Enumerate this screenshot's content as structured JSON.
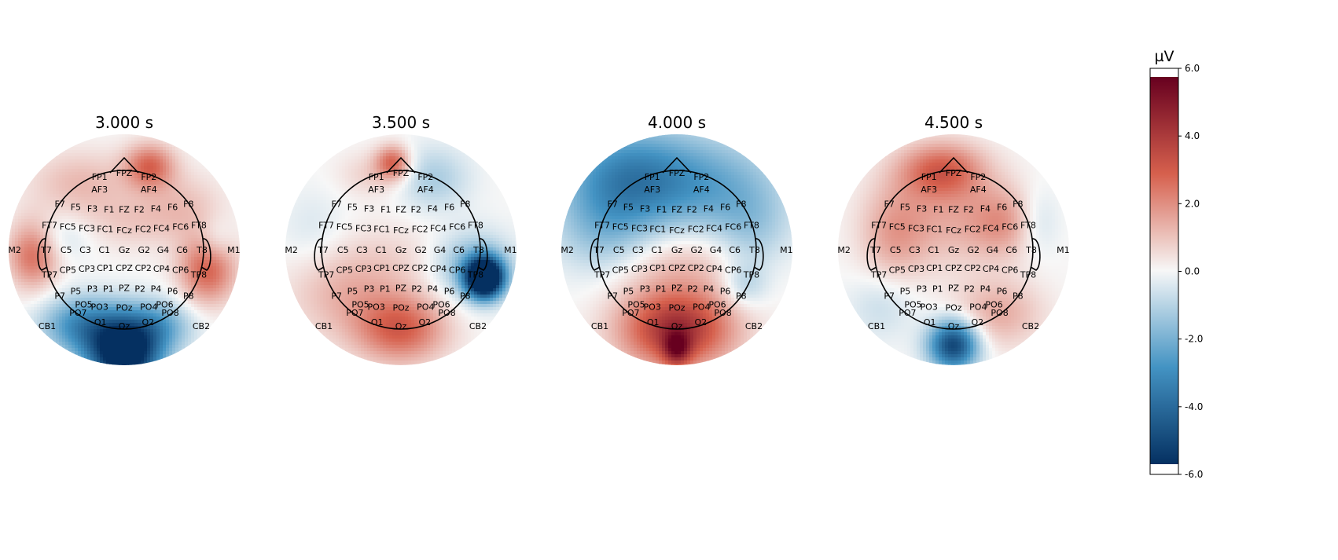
{
  "chart_data": {
    "type": "heatmap",
    "subtype": "eeg-topomap",
    "colormap": "RdBu_r",
    "colors": {
      "max": "#67001f",
      "positive": "#d6604d",
      "zero": "#f7f7f7",
      "negative": "#4393c3",
      "min": "#053061",
      "head_outline": "#000000",
      "contour": "#444444"
    },
    "colorbar": {
      "unit": "µV",
      "vmin": -6.0,
      "vmax": 6.0,
      "ticks": [
        "6.0",
        "4.0",
        "2.0",
        "0.0",
        "-2.0",
        "-4.0",
        "-6.0"
      ]
    },
    "electrodes": [
      {
        "name": "FP1",
        "x": -0.31,
        "y": 0.92
      },
      {
        "name": "FPZ",
        "x": 0.0,
        "y": 0.97
      },
      {
        "name": "FP2",
        "x": 0.31,
        "y": 0.92
      },
      {
        "name": "AF3",
        "x": -0.31,
        "y": 0.76
      },
      {
        "name": "AF4",
        "x": 0.31,
        "y": 0.76
      },
      {
        "name": "F7",
        "x": -0.81,
        "y": 0.58
      },
      {
        "name": "F5",
        "x": -0.61,
        "y": 0.54
      },
      {
        "name": "F3",
        "x": -0.4,
        "y": 0.52
      },
      {
        "name": "F1",
        "x": -0.19,
        "y": 0.51
      },
      {
        "name": "FZ",
        "x": 0.0,
        "y": 0.51
      },
      {
        "name": "F2",
        "x": 0.19,
        "y": 0.51
      },
      {
        "name": "F4",
        "x": 0.4,
        "y": 0.52
      },
      {
        "name": "F6",
        "x": 0.61,
        "y": 0.54
      },
      {
        "name": "F8",
        "x": 0.81,
        "y": 0.58
      },
      {
        "name": "FT7",
        "x": -0.94,
        "y": 0.31
      },
      {
        "name": "FC5",
        "x": -0.71,
        "y": 0.29
      },
      {
        "name": "FC3",
        "x": -0.47,
        "y": 0.27
      },
      {
        "name": "FC1",
        "x": -0.24,
        "y": 0.26
      },
      {
        "name": "FCz",
        "x": 0.0,
        "y": 0.25
      },
      {
        "name": "FC2",
        "x": 0.24,
        "y": 0.26
      },
      {
        "name": "FC4",
        "x": 0.47,
        "y": 0.27
      },
      {
        "name": "FC6",
        "x": 0.71,
        "y": 0.29
      },
      {
        "name": "FT8",
        "x": 0.94,
        "y": 0.31
      },
      {
        "name": "M2",
        "x": -1.38,
        "y": 0.0
      },
      {
        "name": "T7",
        "x": -0.98,
        "y": 0.0
      },
      {
        "name": "C5",
        "x": -0.73,
        "y": 0.0
      },
      {
        "name": "C3",
        "x": -0.49,
        "y": 0.0
      },
      {
        "name": "C1",
        "x": -0.25,
        "y": 0.0
      },
      {
        "name": "Gz",
        "x": 0.0,
        "y": 0.0
      },
      {
        "name": "G2",
        "x": 0.25,
        "y": 0.0
      },
      {
        "name": "G4",
        "x": 0.49,
        "y": 0.0
      },
      {
        "name": "C6",
        "x": 0.73,
        "y": 0.0
      },
      {
        "name": "T8",
        "x": 0.98,
        "y": 0.0
      },
      {
        "name": "M1",
        "x": 1.38,
        "y": 0.0
      },
      {
        "name": "TP7",
        "x": -0.94,
        "y": -0.31
      },
      {
        "name": "CP5",
        "x": -0.71,
        "y": -0.25
      },
      {
        "name": "CP3",
        "x": -0.47,
        "y": -0.24
      },
      {
        "name": "CP1",
        "x": -0.24,
        "y": -0.23
      },
      {
        "name": "CPZ",
        "x": 0.0,
        "y": -0.23
      },
      {
        "name": "CP2",
        "x": 0.24,
        "y": -0.23
      },
      {
        "name": "CP4",
        "x": 0.47,
        "y": -0.24
      },
      {
        "name": "CP6",
        "x": 0.71,
        "y": -0.25
      },
      {
        "name": "TP8",
        "x": 0.94,
        "y": -0.31
      },
      {
        "name": "P7",
        "x": -0.81,
        "y": -0.58
      },
      {
        "name": "P5",
        "x": -0.61,
        "y": -0.52
      },
      {
        "name": "P3",
        "x": -0.4,
        "y": -0.49
      },
      {
        "name": "P1",
        "x": -0.2,
        "y": -0.49
      },
      {
        "name": "PZ",
        "x": 0.0,
        "y": -0.48
      },
      {
        "name": "P2",
        "x": 0.2,
        "y": -0.49
      },
      {
        "name": "P4",
        "x": 0.4,
        "y": -0.49
      },
      {
        "name": "P6",
        "x": 0.61,
        "y": -0.52
      },
      {
        "name": "P8",
        "x": 0.81,
        "y": -0.58
      },
      {
        "name": "PO5",
        "x": -0.51,
        "y": -0.69
      },
      {
        "name": "PO3",
        "x": -0.31,
        "y": -0.72
      },
      {
        "name": "POz",
        "x": 0.0,
        "y": -0.73
      },
      {
        "name": "PO4",
        "x": 0.31,
        "y": -0.72
      },
      {
        "name": "PO6",
        "x": 0.51,
        "y": -0.69
      },
      {
        "name": "PO7",
        "x": -0.58,
        "y": -0.79
      },
      {
        "name": "PO8",
        "x": 0.58,
        "y": -0.79
      },
      {
        "name": "CB1",
        "x": -0.97,
        "y": -0.96
      },
      {
        "name": "O1",
        "x": -0.3,
        "y": -0.91
      },
      {
        "name": "Oz",
        "x": 0.0,
        "y": -0.96
      },
      {
        "name": "O2",
        "x": 0.3,
        "y": -0.91
      },
      {
        "name": "CB2",
        "x": 0.97,
        "y": -0.96
      }
    ],
    "panels": [
      {
        "title": "3.000 s",
        "time_s": 3.0,
        "blobs": [
          {
            "x": 0.0,
            "y": -1.3,
            "sx": 0.32,
            "sy": 0.32,
            "v": -7.5
          },
          {
            "x": -0.55,
            "y": -0.95,
            "sx": 0.35,
            "sy": 0.25,
            "v": -3.0
          },
          {
            "x": 0.45,
            "y": -0.95,
            "sx": 0.3,
            "sy": 0.22,
            "v": -2.0
          },
          {
            "x": 1.05,
            "y": -0.25,
            "sx": 0.25,
            "sy": 0.3,
            "v": 3.0
          },
          {
            "x": 0.32,
            "y": 1.05,
            "sx": 0.22,
            "sy": 0.2,
            "v": 2.8
          },
          {
            "x": -1.15,
            "y": -0.05,
            "sx": 0.22,
            "sy": 0.3,
            "v": 2.8
          },
          {
            "x": -0.55,
            "y": 0.85,
            "sx": 0.45,
            "sy": 0.28,
            "v": 1.2
          },
          {
            "x": 0.75,
            "y": 0.55,
            "sx": 0.35,
            "sy": 0.3,
            "v": 1.0
          },
          {
            "x": 0.05,
            "y": 0.35,
            "sx": 0.45,
            "sy": 0.25,
            "v": 0.8
          },
          {
            "x": -0.85,
            "y": 0.15,
            "sx": 0.3,
            "sy": 0.2,
            "v": -0.8
          },
          {
            "x": 1.15,
            "y": 0.1,
            "sx": 0.15,
            "sy": 0.2,
            "v": -0.8
          }
        ]
      },
      {
        "title": "3.500 s",
        "time_s": 3.5,
        "blobs": [
          {
            "x": 1.05,
            "y": -0.35,
            "sx": 0.16,
            "sy": 0.17,
            "v": -9.5
          },
          {
            "x": 0.9,
            "y": -0.2,
            "sx": 0.35,
            "sy": 0.3,
            "v": -2.0
          },
          {
            "x": 0.4,
            "y": 0.9,
            "sx": 0.32,
            "sy": 0.28,
            "v": -1.3
          },
          {
            "x": 0.0,
            "y": -1.0,
            "sx": 0.4,
            "sy": 0.3,
            "v": 3.0
          },
          {
            "x": -0.1,
            "y": 1.1,
            "sx": 0.15,
            "sy": 0.15,
            "v": 2.8
          },
          {
            "x": -0.35,
            "y": 0.95,
            "sx": 0.3,
            "sy": 0.2,
            "v": 0.8
          },
          {
            "x": -0.7,
            "y": -0.55,
            "sx": 0.5,
            "sy": 0.4,
            "v": 1.3
          },
          {
            "x": 0.0,
            "y": -0.1,
            "sx": 0.55,
            "sy": 0.35,
            "v": 0.5
          },
          {
            "x": -1.1,
            "y": 0.25,
            "sx": 0.3,
            "sy": 0.35,
            "v": -0.5
          }
        ]
      },
      {
        "title": "4.000 s",
        "time_s": 4.0,
        "blobs": [
          {
            "x": 0.0,
            "y": -1.0,
            "sx": 0.5,
            "sy": 0.35,
            "v": 4.5
          },
          {
            "x": 0.0,
            "y": -1.25,
            "sx": 0.12,
            "sy": 0.15,
            "v": 3.0
          },
          {
            "x": 0.0,
            "y": -0.15,
            "sx": 0.7,
            "sy": 0.35,
            "v": 1.2
          },
          {
            "x": -0.6,
            "y": 0.9,
            "sx": 0.6,
            "sy": 0.45,
            "v": -3.5
          },
          {
            "x": 0.5,
            "y": 0.8,
            "sx": 0.6,
            "sy": 0.45,
            "v": -1.9
          },
          {
            "x": -0.9,
            "y": 0.15,
            "sx": 0.45,
            "sy": 0.4,
            "v": -1.5
          },
          {
            "x": 0.95,
            "y": 0.2,
            "sx": 0.35,
            "sy": 0.4,
            "v": -1.2
          },
          {
            "x": 0.85,
            "y": -0.45,
            "sx": 0.2,
            "sy": 0.2,
            "v": -1.2
          }
        ]
      },
      {
        "title": "4.500 s",
        "time_s": 4.5,
        "blobs": [
          {
            "x": 0.0,
            "y": -1.2,
            "sx": 0.22,
            "sy": 0.22,
            "v": -5.5
          },
          {
            "x": -0.15,
            "y": 1.0,
            "sx": 0.38,
            "sy": 0.25,
            "v": 3.0
          },
          {
            "x": 0.0,
            "y": 0.35,
            "sx": 0.6,
            "sy": 0.4,
            "v": 1.3
          },
          {
            "x": -0.75,
            "y": 0.2,
            "sx": 0.3,
            "sy": 0.45,
            "v": 1.4
          },
          {
            "x": 0.65,
            "y": 0.35,
            "sx": 0.3,
            "sy": 0.3,
            "v": 1.4
          },
          {
            "x": 0.55,
            "y": -0.8,
            "sx": 0.4,
            "sy": 0.3,
            "v": 1.5
          },
          {
            "x": -0.9,
            "y": -0.7,
            "sx": 0.3,
            "sy": 0.3,
            "v": -0.8
          },
          {
            "x": 1.05,
            "y": 0.35,
            "sx": 0.2,
            "sy": 0.3,
            "v": -1.0
          }
        ]
      }
    ]
  }
}
